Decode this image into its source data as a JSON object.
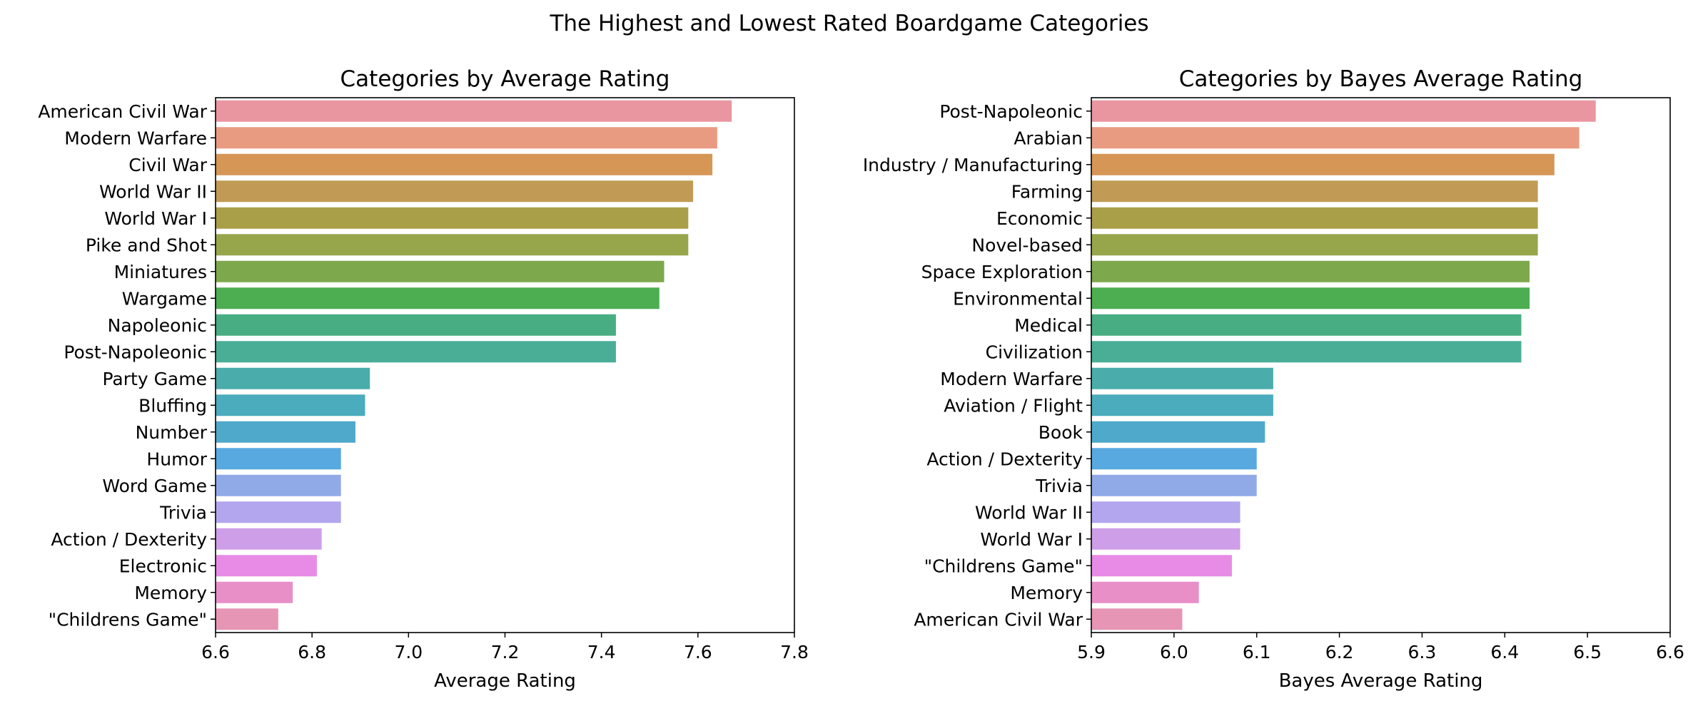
{
  "suptitle": "The Highest and Lowest Rated Boardgame Categories",
  "chart_data": [
    {
      "type": "bar",
      "orientation": "horizontal",
      "title": "Categories by Average Rating",
      "xlabel": "Average Rating",
      "ylabel": "",
      "xlim": [
        6.6,
        7.8
      ],
      "xticks": [
        "6.6",
        "6.8",
        "7.0",
        "7.2",
        "7.4",
        "7.6",
        "7.8"
      ],
      "grid": false,
      "categories": [
        "American Civil War",
        "Modern Warfare",
        "Civil War",
        "World War II",
        "World War I",
        "Pike and Shot",
        "Miniatures",
        "Wargame",
        "Napoleonic",
        "Post-Napoleonic",
        "Party Game",
        "Bluffing",
        "Number",
        "Humor",
        "Word Game",
        "Trivia",
        "Action / Dexterity",
        "Electronic",
        "Memory",
        "\"Childrens Game\""
      ],
      "values": [
        7.67,
        7.64,
        7.63,
        7.59,
        7.58,
        7.58,
        7.53,
        7.52,
        7.43,
        7.43,
        6.92,
        6.91,
        6.89,
        6.86,
        6.86,
        6.86,
        6.82,
        6.81,
        6.76,
        6.73
      ],
      "colors": [
        "#ea96a1",
        "#e99b82",
        "#d69655",
        "#c19b55",
        "#aa9f49",
        "#97a64b",
        "#7ea84c",
        "#4cae51",
        "#48ad83",
        "#4aae97",
        "#4aadab",
        "#4bacbd",
        "#4fa9ca",
        "#57a9e0",
        "#90aae8",
        "#b3a6ee",
        "#cf9ee9",
        "#e88be6",
        "#e88fc8",
        "#e795b5"
      ]
    },
    {
      "type": "bar",
      "orientation": "horizontal",
      "title": "Categories by Bayes Average Rating",
      "xlabel": "Bayes Average Rating",
      "ylabel": "",
      "xlim": [
        5.9,
        6.6
      ],
      "xticks": [
        "5.9",
        "6.0",
        "6.1",
        "6.2",
        "6.3",
        "6.4",
        "6.5",
        "6.6"
      ],
      "grid": false,
      "categories": [
        "Post-Napoleonic",
        "Arabian",
        "Industry / Manufacturing",
        "Farming",
        "Economic",
        "Novel-based",
        "Space Exploration",
        "Environmental",
        "Medical",
        "Civilization",
        "Modern Warfare",
        "Aviation / Flight",
        "Book",
        "Action / Dexterity",
        "Trivia",
        "World War II",
        "World War I",
        "\"Childrens Game\"",
        "Memory",
        "American Civil War"
      ],
      "values": [
        6.51,
        6.49,
        6.46,
        6.44,
        6.44,
        6.44,
        6.43,
        6.43,
        6.42,
        6.42,
        6.12,
        6.12,
        6.11,
        6.1,
        6.1,
        6.08,
        6.08,
        6.07,
        6.03,
        6.01
      ],
      "colors": [
        "#ea96a1",
        "#e99b82",
        "#d69655",
        "#c19b55",
        "#aa9f49",
        "#97a64b",
        "#7ea84c",
        "#4cae51",
        "#48ad83",
        "#4aae97",
        "#4aadab",
        "#4bacbd",
        "#4fa9ca",
        "#57a9e0",
        "#90aae8",
        "#b3a6ee",
        "#cf9ee9",
        "#e88be6",
        "#e88fc8",
        "#e795b5"
      ]
    }
  ]
}
